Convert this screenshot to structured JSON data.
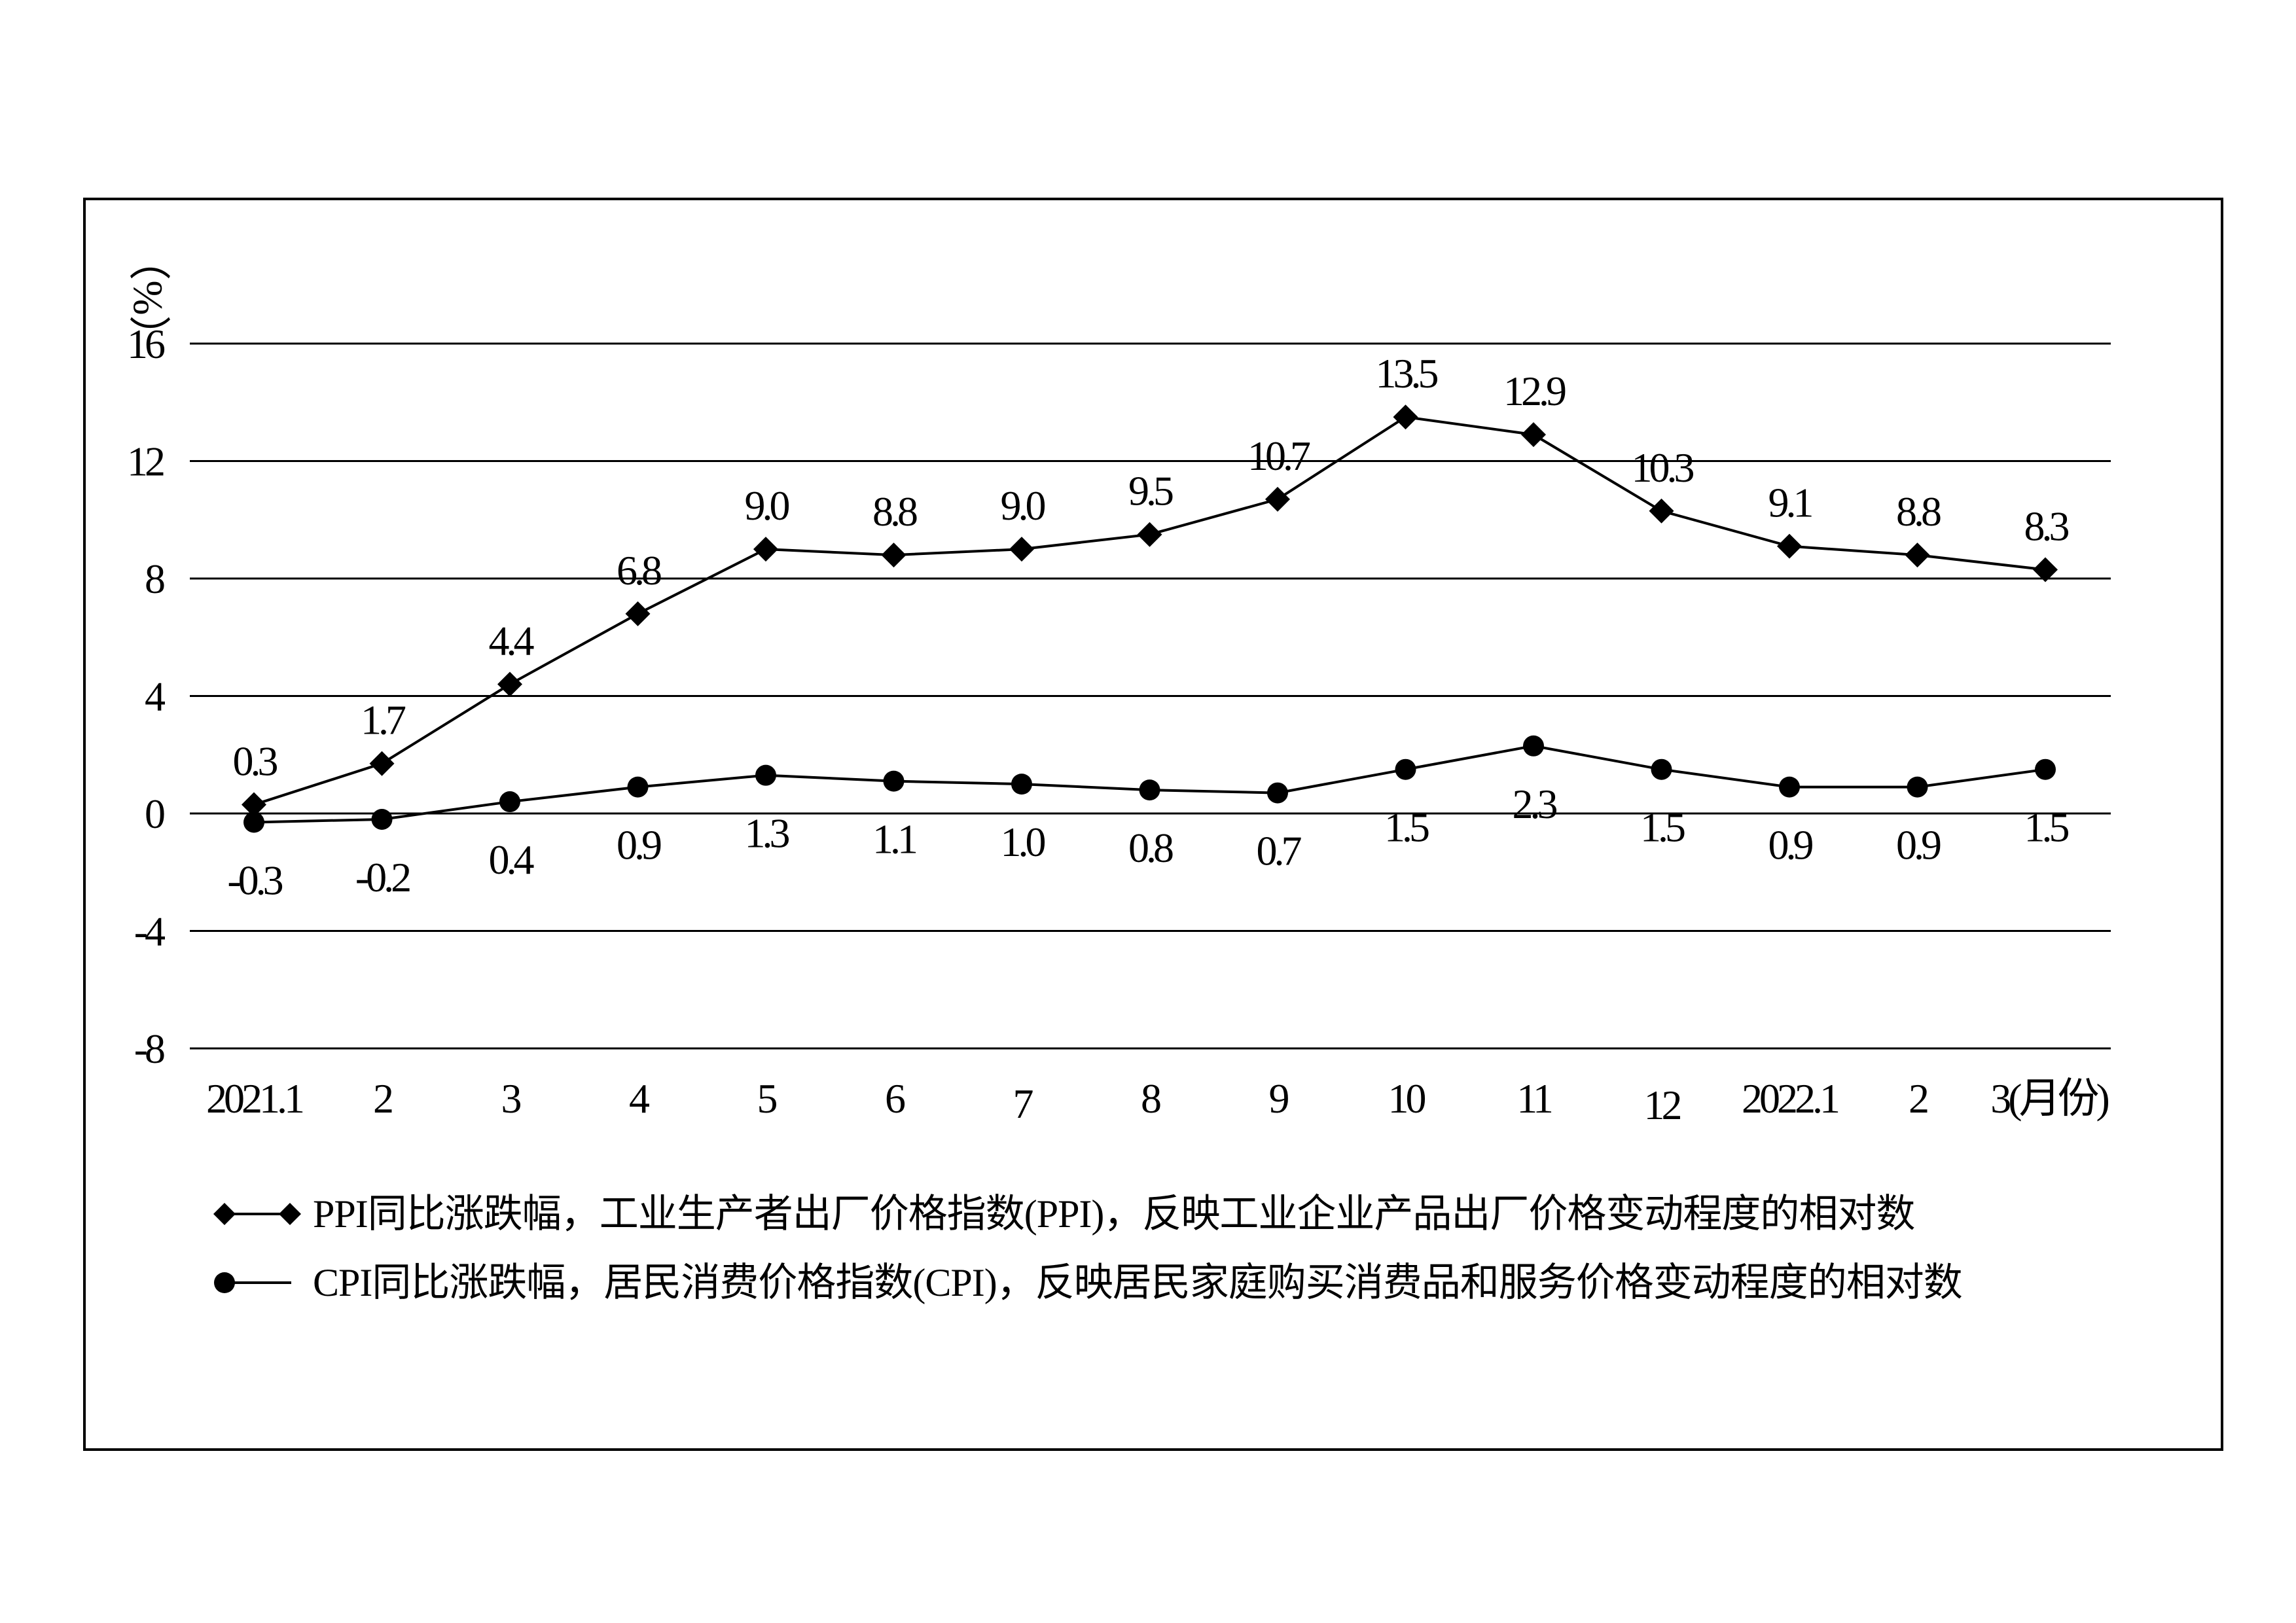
{
  "chart_data": {
    "type": "line",
    "ylabel": "（%）",
    "xlabel_suffix": "(月份)",
    "categories": [
      "2021.1",
      "2",
      "3",
      "4",
      "5",
      "6",
      "7",
      "8",
      "9",
      "10",
      "11",
      "12",
      "2022.1",
      "2",
      "3"
    ],
    "ylim": [
      -8,
      16
    ],
    "yticks": [
      "16",
      "12",
      "8",
      "4",
      "0",
      "-4",
      "-8"
    ],
    "grid": true,
    "legend_position": "bottom",
    "series": [
      {
        "name": "PPI同比涨跌幅，工业生产者出厂价格指数(PPI)，反映工业企业产品出厂价格变动程度的相对数",
        "marker": "diamond",
        "values": [
          0.3,
          1.7,
          4.4,
          6.8,
          9.0,
          8.8,
          9.0,
          9.5,
          10.7,
          13.5,
          12.9,
          10.3,
          9.1,
          8.8,
          8.3
        ],
        "labels": [
          "0.3",
          "1.7",
          "4.4",
          "6.8",
          "9.0",
          "8.8",
          "9.0",
          "9.5",
          "10.7",
          "13.5",
          "12.9",
          "10.3",
          "9.1",
          "8.8",
          "8.3"
        ]
      },
      {
        "name": "CPI同比涨跌幅，居民消费价格指数(CPI)，反映居民家庭购买消费品和服务价格变动程度的相对数",
        "marker": "circle",
        "values": [
          -0.3,
          -0.2,
          0.4,
          0.9,
          1.3,
          1.1,
          1.0,
          0.8,
          0.7,
          1.5,
          2.3,
          1.5,
          0.9,
          0.9,
          1.5
        ],
        "labels": [
          "-0.3",
          "-0.2",
          "0.4",
          "0.9",
          "1.3",
          "1.1",
          "1.0",
          "0.8",
          "0.7",
          "1.5",
          "2.3",
          "1.5",
          "0.9",
          "0.9",
          "1.5"
        ]
      }
    ]
  },
  "colors": {
    "line": "#000000",
    "grid": "#000000",
    "background": "#ffffff"
  }
}
